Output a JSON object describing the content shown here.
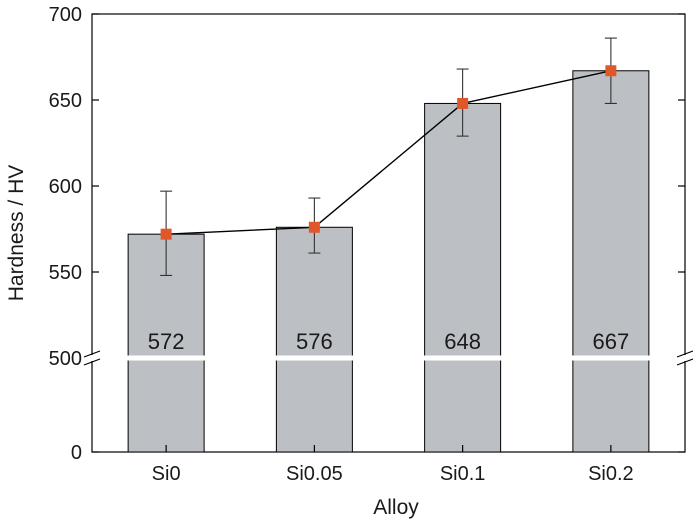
{
  "chart_data": {
    "type": "bar",
    "categories": [
      "Si0",
      "Si0.05",
      "Si0.1",
      "Si0.2"
    ],
    "values": [
      572,
      576,
      648,
      667
    ],
    "error": [
      {
        "low": 548,
        "high": 597
      },
      {
        "low": 561,
        "high": 593
      },
      {
        "low": 629,
        "high": 668
      },
      {
        "low": 648,
        "high": 686
      }
    ],
    "line_overlay": true,
    "xlabel": "Alloy",
    "ylabel": "Hardness / HV",
    "y_axis_break": true,
    "y_segments": [
      {
        "range": [
          0,
          500
        ],
        "ticks": [
          0,
          500
        ]
      },
      {
        "range": [
          500,
          700
        ],
        "ticks": [
          500,
          550,
          600,
          650,
          700
        ]
      }
    ],
    "data_labels": [
      "572",
      "576",
      "648",
      "667"
    ],
    "grid": false,
    "colors": {
      "bar": "#bcc0c4",
      "marker": "#e0582a",
      "line": "#000000"
    }
  }
}
